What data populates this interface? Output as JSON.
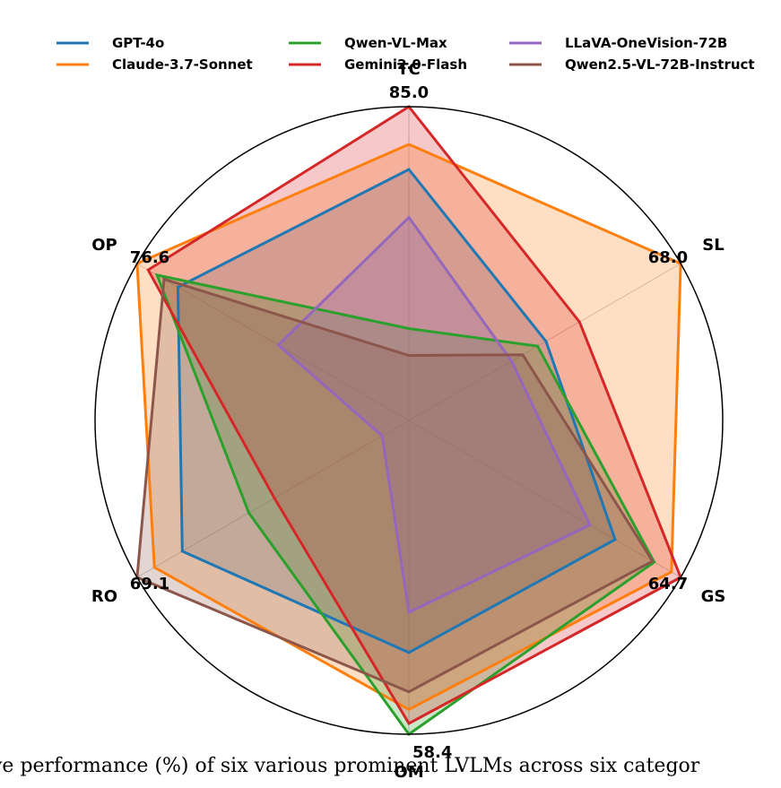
{
  "chart_data": {
    "type": "radar",
    "axes": [
      "TC",
      "SL",
      "GS",
      "OM",
      "RO",
      "OP"
    ],
    "axis_max_labels": [
      "85.0",
      "68.0",
      "64.7",
      "58.4",
      "69.1",
      "76.6"
    ],
    "axis_max": [
      85.0,
      68.0,
      64.7,
      58.4,
      69.1,
      76.6
    ],
    "series": [
      {
        "name": "GPT-4o",
        "color": "#1f77b4",
        "values": [
          68.0,
          34.3,
          49.1,
          43.2,
          57.6,
          65.1
        ]
      },
      {
        "name": "Claude-3.7-Sonnet",
        "color": "#ff7f0e",
        "values": [
          74.8,
          68.0,
          62.5,
          53.8,
          64.7,
          76.6
        ]
      },
      {
        "name": "Qwen-VL-Max",
        "color": "#2ca02c",
        "values": [
          24.9,
          32.2,
          58.4,
          58.4,
          40.7,
          71.0
        ]
      },
      {
        "name": "Gemini2.0-Flash",
        "color": "#d62728",
        "values": [
          85.0,
          42.7,
          64.7,
          56.4,
          34.2,
          73.5
        ]
      },
      {
        "name": "LLaVA-OneVision-72B",
        "color": "#9467bd",
        "values": [
          55.0,
          25.7,
          43.1,
          35.7,
          6.8,
          36.8
        ]
      },
      {
        "name": "Qwen2.5-VL-72B-Instruct",
        "color": "#8c564b",
        "values": [
          17.6,
          28.5,
          58.0,
          50.5,
          69.1,
          69.0
        ]
      }
    ],
    "grid": true,
    "legend": "top"
  },
  "caption": "ve performance (%) of six various prominent LVLMs across six categor"
}
